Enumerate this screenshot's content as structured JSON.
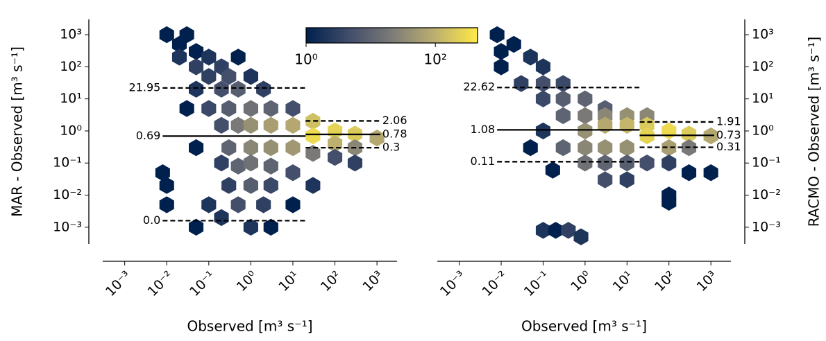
{
  "colorbar": {
    "clim": [
      1,
      450
    ],
    "ticks": [
      {
        "value": 1,
        "label": "10⁰"
      },
      {
        "value": 100,
        "label": "10²"
      }
    ],
    "colormap": [
      "#00204d",
      "#414d6b",
      "#7c7b78",
      "#bcaf6f",
      "#ffea46"
    ]
  },
  "chart_data": [
    {
      "type": "hexbin",
      "ylabel": "MAR - Observed [m³ s⁻¹]",
      "xlabel": "Observed [m³ s⁻¹]",
      "yaxis_side": "left",
      "xscale": "log",
      "yscale": "log",
      "xlim": [
        0.0003,
        3000
      ],
      "ylim": [
        0.0003,
        3000
      ],
      "xticks": [
        {
          "value": 0.001,
          "label": "10⁻³"
        },
        {
          "value": 0.01,
          "label": "10⁻²"
        },
        {
          "value": 0.1,
          "label": "10⁻¹"
        },
        {
          "value": 1,
          "label": "10⁰"
        },
        {
          "value": 10,
          "label": "10¹"
        },
        {
          "value": 100,
          "label": "10²"
        },
        {
          "value": 1000,
          "label": "10³"
        }
      ],
      "yticks": [
        {
          "value": 0.001,
          "label": "10⁻³"
        },
        {
          "value": 0.01,
          "label": "10⁻²"
        },
        {
          "value": 0.1,
          "label": "10⁻¹"
        },
        {
          "value": 1,
          "label": "10⁰"
        },
        {
          "value": 10,
          "label": "10¹"
        },
        {
          "value": 100,
          "label": "10²"
        },
        {
          "value": 1000,
          "label": "10³"
        }
      ],
      "x": [
        0.01,
        0.02,
        0.03,
        0.02,
        0.05,
        0.1,
        0.05,
        0.2,
        0.5,
        0.1,
        0.3,
        1,
        0.05,
        0.2,
        0.5,
        2,
        0.03,
        0.1,
        0.3,
        1,
        3,
        10,
        0.2,
        0.5,
        1,
        3,
        10,
        30,
        100,
        30,
        300,
        1000,
        100,
        300,
        0.05,
        0.3,
        1,
        3,
        10,
        30,
        100,
        300,
        0.2,
        0.5,
        1,
        3,
        10,
        30,
        0.008,
        0.01,
        0.3,
        1,
        3,
        0.01,
        0.1,
        0.5,
        2,
        10,
        0.05,
        0.2,
        1,
        3
      ],
      "y": [
        1000,
        500,
        1000,
        200,
        300,
        200,
        100,
        100,
        200,
        50,
        50,
        50,
        20,
        20,
        20,
        20,
        5,
        5,
        5,
        5,
        5,
        5,
        1.5,
        1.5,
        1.5,
        1.5,
        1.5,
        2,
        1,
        0.7,
        0.8,
        0.6,
        0.4,
        0.3,
        0.3,
        0.3,
        0.3,
        0.3,
        0.3,
        0.2,
        0.15,
        0.1,
        0.1,
        0.08,
        0.1,
        0.08,
        0.05,
        0.02,
        0.05,
        0.02,
        0.02,
        0.02,
        0.02,
        0.005,
        0.005,
        0.005,
        0.005,
        0.005,
        0.001,
        0.002,
        0.001,
        0.001
      ],
      "counts": [
        1,
        1,
        1,
        2,
        1,
        2,
        3,
        3,
        1,
        3,
        5,
        2,
        2,
        5,
        8,
        3,
        1,
        4,
        8,
        15,
        10,
        5,
        5,
        20,
        40,
        60,
        80,
        150,
        250,
        300,
        200,
        80,
        100,
        30,
        1,
        10,
        30,
        40,
        50,
        20,
        5,
        3,
        3,
        10,
        15,
        10,
        5,
        2,
        1,
        1,
        3,
        8,
        4,
        1,
        2,
        5,
        3,
        1,
        1,
        2,
        2,
        1
      ],
      "annotations": [
        {
          "label": "21.95",
          "value": 21.95,
          "x": [
            0.008,
            20
          ],
          "style": "dashed"
        },
        {
          "label": "0.69",
          "value": 0.69,
          "x": [
            0.008,
            20
          ],
          "style": "solid"
        },
        {
          "label": "0.0",
          "value": 0.0016,
          "x": [
            0.008,
            20
          ],
          "style": "dashed"
        },
        {
          "label": "2.06",
          "value": 2.06,
          "x": [
            20,
            1200
          ],
          "style": "dashed"
        },
        {
          "label": "0.78",
          "value": 0.78,
          "x": [
            20,
            1200
          ],
          "style": "solid"
        },
        {
          "label": "0.3",
          "value": 0.3,
          "x": [
            20,
            1200
          ],
          "style": "dashed"
        }
      ]
    },
    {
      "type": "hexbin",
      "ylabel": "RACMO - Observed [m³ s⁻¹]",
      "xlabel": "Observed [m³ s⁻¹]",
      "yaxis_side": "right",
      "xscale": "log",
      "yscale": "log",
      "xlim": [
        0.0003,
        3000
      ],
      "ylim": [
        0.0003,
        3000
      ],
      "xticks": [
        {
          "value": 0.001,
          "label": "10⁻³"
        },
        {
          "value": 0.01,
          "label": "10⁻²"
        },
        {
          "value": 0.1,
          "label": "10⁻¹"
        },
        {
          "value": 1,
          "label": "10⁰"
        },
        {
          "value": 10,
          "label": "10¹"
        },
        {
          "value": 100,
          "label": "10²"
        },
        {
          "value": 1000,
          "label": "10³"
        }
      ],
      "yticks": [
        {
          "value": 0.001,
          "label": "10⁻³"
        },
        {
          "value": 0.01,
          "label": "10⁻²"
        },
        {
          "value": 0.1,
          "label": "10⁻¹"
        },
        {
          "value": 1,
          "label": "10⁰"
        },
        {
          "value": 10,
          "label": "10¹"
        },
        {
          "value": 100,
          "label": "10²"
        },
        {
          "value": 1000,
          "label": "10³"
        }
      ],
      "x": [
        0.008,
        0.01,
        0.02,
        0.05,
        0.1,
        0.01,
        0.03,
        0.1,
        0.3,
        0.1,
        0.3,
        1,
        3,
        0.3,
        1,
        3,
        10,
        30,
        1,
        3,
        10,
        30,
        100,
        30,
        300,
        1000,
        0.1,
        0.05,
        0.3,
        1,
        3,
        10,
        100,
        300,
        1,
        3,
        10,
        30,
        100,
        300,
        1000,
        3,
        10,
        100,
        0.17,
        100,
        0.1,
        0.2,
        0.4,
        0.8
      ],
      "y": [
        1000,
        300,
        500,
        200,
        100,
        100,
        30,
        30,
        30,
        10,
        10,
        10,
        5,
        3,
        3,
        3,
        3,
        3,
        1,
        1.5,
        1.5,
        1.5,
        1,
        0.7,
        0.8,
        0.7,
        1,
        0.3,
        0.3,
        0.3,
        0.3,
        0.3,
        0.3,
        0.3,
        0.1,
        0.1,
        0.1,
        0.1,
        0.1,
        0.05,
        0.05,
        0.03,
        0.03,
        0.01,
        0.06,
        0.006,
        0.0008,
        0.0008,
        0.0008,
        0.0005
      ],
      "counts": [
        1,
        1,
        1,
        2,
        2,
        1,
        3,
        5,
        4,
        4,
        8,
        10,
        8,
        10,
        20,
        30,
        40,
        30,
        40,
        80,
        120,
        200,
        300,
        250,
        200,
        80,
        2,
        1,
        10,
        30,
        40,
        40,
        60,
        20,
        15,
        10,
        8,
        5,
        3,
        1,
        1,
        5,
        3,
        1,
        1,
        1,
        2,
        1,
        3,
        2
      ],
      "annotations": [
        {
          "label": "22.62",
          "value": 22.62,
          "x": [
            0.008,
            20
          ],
          "style": "dashed"
        },
        {
          "label": "1.08",
          "value": 1.08,
          "x": [
            0.008,
            20
          ],
          "style": "solid"
        },
        {
          "label": "0.11",
          "value": 0.11,
          "x": [
            0.008,
            20
          ],
          "style": "dashed"
        },
        {
          "label": "1.91",
          "value": 1.91,
          "x": [
            20,
            1200
          ],
          "style": "dashed"
        },
        {
          "label": "0.73",
          "value": 0.73,
          "x": [
            20,
            1200
          ],
          "style": "solid"
        },
        {
          "label": "0.31",
          "value": 0.31,
          "x": [
            20,
            1200
          ],
          "style": "dashed"
        }
      ]
    }
  ]
}
